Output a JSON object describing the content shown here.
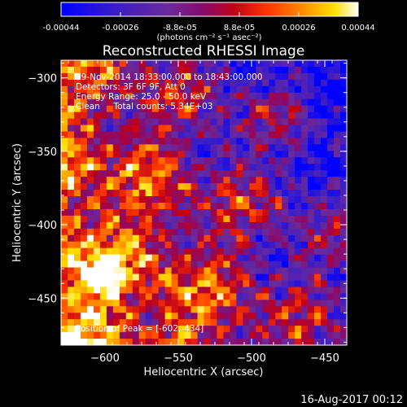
{
  "chart_data": {
    "type": "heatmap",
    "title": "Reconstructed RHESSI Image",
    "xlabel": "Heliocentric X (arcsec)",
    "ylabel": "Heliocentric Y (arcsec)",
    "xlim": [
      -630,
      -435
    ],
    "ylim": [
      -482,
      -288
    ],
    "x_ticks": [
      -600,
      -550,
      -500,
      -450
    ],
    "y_ticks": [
      -300,
      -350,
      -400,
      -450
    ],
    "colorbar": {
      "min": -0.00044,
      "max": 0.00044,
      "ticks": [
        "-0.00044",
        "-0.00026",
        "-8.8e-05",
        "8.8e-05",
        "0.00026",
        "0.00044"
      ],
      "units": "(photons cm⁻² s⁻¹ asec⁻²)",
      "colormap": [
        "#0000ff",
        "#4b0082",
        "#7a2fb5",
        "#a0106b",
        "#c8001e",
        "#ff3a00",
        "#ff8c00",
        "#ffd400",
        "#ffffff"
      ]
    },
    "annotations": {
      "time_range": "29-Nov-2014 18:33:00.000 to 18:43:00.000",
      "detectors": "Detectors: 3F 6F 9F, Att 0",
      "energy_range": "Energy Range: 25.0 - 50.0 keV",
      "method": "Clean     Total counts: 5.34E+03",
      "peak": "Position of Peak = [-602,-434]"
    },
    "peak_position": [
      -602,
      -434
    ],
    "grid": false
  },
  "footer": {
    "timestamp": "16-Aug-2017 00:12"
  }
}
